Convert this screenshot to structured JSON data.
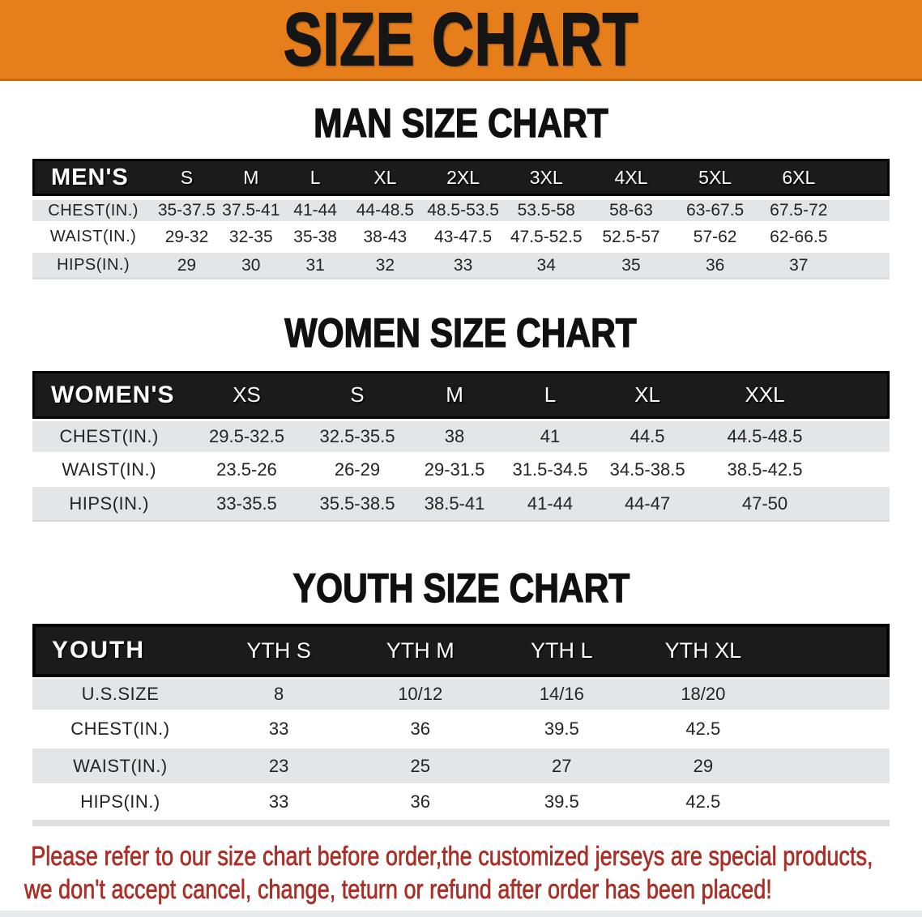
{
  "banner": {
    "title": "SIZE CHART",
    "bg": "#E67E1B",
    "text_color": "#151515"
  },
  "sections": [
    {
      "heading": "MAN SIZE CHART",
      "table": {
        "header_label": "MEN'S",
        "columns": [
          "S",
          "M",
          "L",
          "XL",
          "2XL",
          "3XL",
          "4XL",
          "5XL",
          "6XL"
        ],
        "rows": [
          {
            "label": "CHEST(IN.)",
            "values": [
              "35-37.5",
              "37.5-41",
              "41-44",
              "44-48.5",
              "48.5-53.5",
              "53.5-58",
              "58-63",
              "63-67.5",
              "67.5-72"
            ]
          },
          {
            "label": "WAIST(IN.)",
            "values": [
              "29-32",
              "32-35",
              "35-38",
              "38-43",
              "43-47.5",
              "47.5-52.5",
              "52.5-57",
              "57-62",
              "62-66.5"
            ]
          },
          {
            "label": "HIPS(IN.)",
            "values": [
              "29",
              "30",
              "31",
              "32",
              "33",
              "34",
              "35",
              "36",
              "37"
            ]
          }
        ]
      }
    },
    {
      "heading": "WOMEN SIZE CHART",
      "table": {
        "header_label": "WOMEN'S",
        "columns": [
          "XS",
          "S",
          "M",
          "L",
          "XL",
          "XXL"
        ],
        "rows": [
          {
            "label": "CHEST(IN.)",
            "values": [
              "29.5-32.5",
              "32.5-35.5",
              "38",
              "41",
              "44.5",
              "44.5-48.5"
            ]
          },
          {
            "label": "WAIST(IN.)",
            "values": [
              "23.5-26",
              "26-29",
              "29-31.5",
              "31.5-34.5",
              "34.5-38.5",
              "38.5-42.5"
            ]
          },
          {
            "label": "HIPS(IN.)",
            "values": [
              "33-35.5",
              "35.5-38.5",
              "38.5-41",
              "41-44",
              "44-47",
              "47-50"
            ]
          }
        ]
      }
    },
    {
      "heading": "YOUTH SIZE CHART",
      "table": {
        "header_label": "YOUTH",
        "columns": [
          "YTH S",
          "YTH M",
          "YTH L",
          "YTH XL"
        ],
        "rows": [
          {
            "label": "U.S.SIZE",
            "values": [
              "8",
              "10/12",
              "14/16",
              "18/20"
            ]
          },
          {
            "label": "CHEST(IN.)",
            "values": [
              "33",
              "36",
              "39.5",
              "42.5"
            ]
          },
          {
            "label": "WAIST(IN.)",
            "values": [
              "23",
              "25",
              "27",
              "29"
            ]
          },
          {
            "label": "HIPS(IN.)",
            "values": [
              "33",
              "36",
              "39.5",
              "42.5"
            ]
          }
        ]
      }
    }
  ],
  "disclaimer": {
    "line1": "Please refer to our size chart before order,the customized jerseys are special products,",
    "line2": "we don't accept cancel, change, teturn or refund after order has been placed!",
    "color": "#AA2F26"
  }
}
